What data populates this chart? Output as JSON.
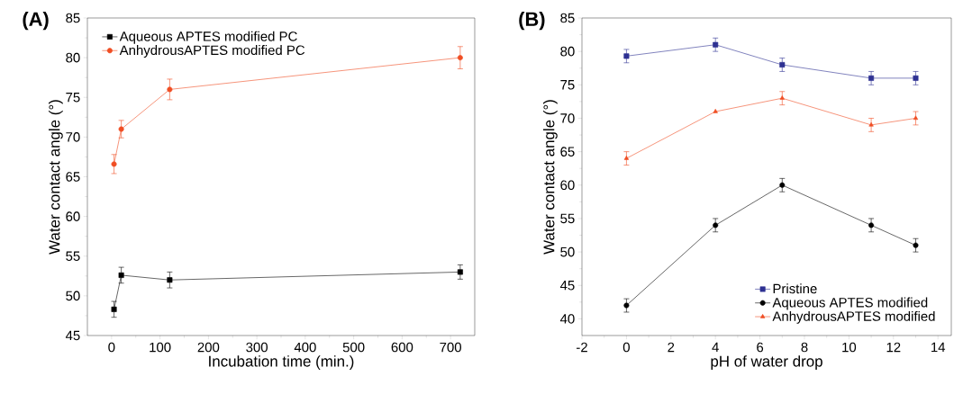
{
  "chart_data": [
    {
      "type": "line",
      "xlabel": "Incubation time (min.)",
      "ylabel": "Water contact angle (°)",
      "annotations": [
        "(A)"
      ],
      "x": [
        5,
        20,
        120,
        720
      ],
      "xlim": [
        -50,
        750
      ],
      "xticks": [
        0,
        100,
        200,
        300,
        400,
        500,
        600,
        700
      ],
      "ylim": [
        45,
        85
      ],
      "yticks": [
        45,
        50,
        55,
        60,
        65,
        70,
        75,
        80,
        85
      ],
      "legend": "top left",
      "series": [
        {
          "name": "Aqueous APTES modified PC",
          "color": "#000000",
          "marker": "square",
          "values": [
            48.3,
            52.6,
            52.0,
            53.0
          ],
          "errors": [
            1.0,
            1.0,
            1.0,
            0.9
          ]
        },
        {
          "name": "AnhydrousAPTES modified PC",
          "color": "#f04e23",
          "marker": "circle",
          "values": [
            66.6,
            71.0,
            76.0,
            80.0
          ],
          "errors": [
            1.2,
            1.1,
            1.3,
            1.4
          ]
        }
      ]
    },
    {
      "type": "line",
      "xlabel": "pH of water drop",
      "ylabel": "Water contact angle (°)",
      "annotations": [
        "(B)"
      ],
      "x": [
        0,
        4,
        7,
        11,
        13
      ],
      "xlim": [
        -2,
        14.6
      ],
      "xticks": [
        -2,
        0,
        2,
        4,
        6,
        8,
        10,
        12,
        14
      ],
      "ylim": [
        37.5,
        85
      ],
      "yticks": [
        40,
        45,
        50,
        55,
        60,
        65,
        70,
        75,
        80,
        85
      ],
      "legend": "bottom right",
      "series": [
        {
          "name": "Pristine",
          "color": "#2e3192",
          "marker": "square",
          "values": [
            79.3,
            81.0,
            78.0,
            76.0,
            76.0
          ],
          "errors": [
            1.0,
            1.0,
            1.0,
            1.0,
            1.0
          ]
        },
        {
          "name": "Aqueous APTES modified",
          "color": "#000000",
          "marker": "circle",
          "values": [
            42.0,
            54.0,
            60.0,
            54.0,
            51.0
          ],
          "errors": [
            1.0,
            1.0,
            1.0,
            1.0,
            1.0
          ]
        },
        {
          "name": "AnhydrousAPTES modified",
          "color": "#f04e23",
          "marker": "triangle",
          "values": [
            64.0,
            71.0,
            73.0,
            69.0,
            70.0
          ],
          "errors": [
            1.0,
            null,
            1.0,
            1.0,
            1.0
          ]
        }
      ]
    }
  ]
}
